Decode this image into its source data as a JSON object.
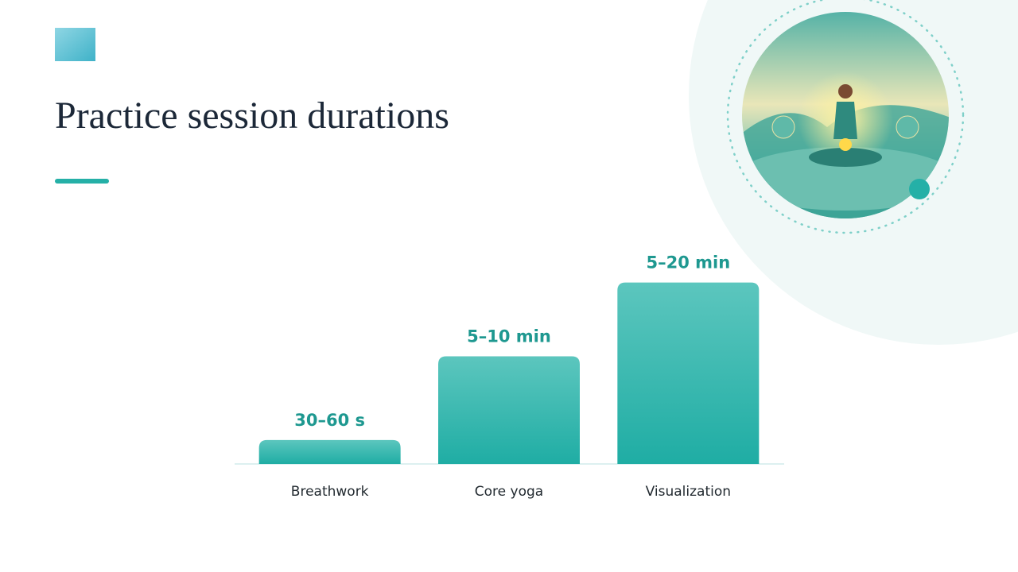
{
  "chart_data": {
    "type": "bar",
    "title": "Practice session durations",
    "categories": [
      "Breathwork",
      "Core yoga",
      "Visualization"
    ],
    "values": [
      12,
      54,
      91
    ],
    "labels": [
      "30–60 s",
      "5–10 min",
      "5–20 min"
    ],
    "color": "#2fb5ac",
    "ylim": [
      0,
      100
    ]
  }
}
